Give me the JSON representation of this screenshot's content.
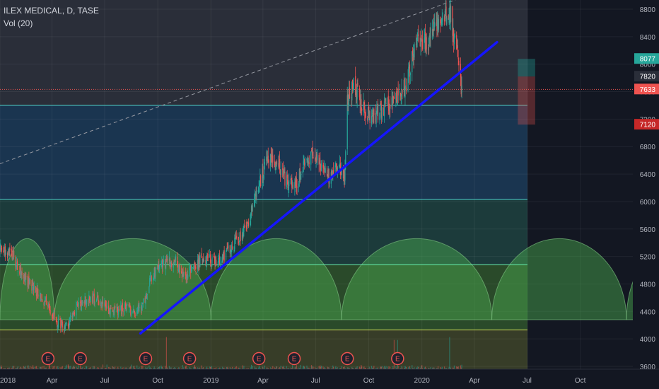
{
  "header": {
    "symbol_line": "ILEX MEDICAL, D, TASE",
    "volume_label": "Vol (20)"
  },
  "colors": {
    "background": "#131722",
    "up_candle": "#26a69a",
    "down_candle": "#ef5350",
    "trendline": "#1515ff",
    "cycle_fill": "#4caf50",
    "channel_line": "#4dd0c8",
    "earnings_marker": "#ef5350"
  },
  "chart_data": {
    "type": "candlestick",
    "symbol": "ILEX MEDICAL",
    "interval": "D",
    "exchange": "TASE",
    "y_axis": {
      "range": [
        3560,
        8950
      ],
      "ticks": [
        "8800",
        "8400",
        "8000",
        "7600",
        "7200",
        "6800",
        "6400",
        "6000",
        "5600",
        "5200",
        "4800",
        "4400",
        "4000",
        "3600"
      ]
    },
    "x_axis": {
      "range": [
        "2018-01-01",
        "2020-12-31"
      ],
      "labels": [
        {
          "date": "2018-01-01",
          "label": "2018"
        },
        {
          "date": "2018-04-01",
          "label": "Apr"
        },
        {
          "date": "2018-07-01",
          "label": "Jul"
        },
        {
          "date": "2018-10-01",
          "label": "Oct"
        },
        {
          "date": "2019-01-01",
          "label": "2019"
        },
        {
          "date": "2019-04-01",
          "label": "Apr"
        },
        {
          "date": "2019-07-01",
          "label": "Jul"
        },
        {
          "date": "2019-10-01",
          "label": "Oct"
        },
        {
          "date": "2020-01-01",
          "label": "2020"
        },
        {
          "date": "2020-04-01",
          "label": "Apr"
        },
        {
          "date": "2020-07-01",
          "label": "Jul"
        },
        {
          "date": "2020-10-01",
          "label": "Oct"
        }
      ]
    },
    "price_path": [
      [
        "2018-01-01",
        5300
      ],
      [
        "2018-01-20",
        5250
      ],
      [
        "2018-02-10",
        4900
      ],
      [
        "2018-03-01",
        4750
      ],
      [
        "2018-03-20",
        4550
      ],
      [
        "2018-04-10",
        4250
      ],
      [
        "2018-04-25",
        4180
      ],
      [
        "2018-05-15",
        4450
      ],
      [
        "2018-06-05",
        4620
      ],
      [
        "2018-06-25",
        4500
      ],
      [
        "2018-07-15",
        4400
      ],
      [
        "2018-08-05",
        4450
      ],
      [
        "2018-08-25",
        4380
      ],
      [
        "2018-09-05",
        4500
      ],
      [
        "2018-09-20",
        4900
      ],
      [
        "2018-10-10",
        5100
      ],
      [
        "2018-10-30",
        5150
      ],
      [
        "2018-11-15",
        4900
      ],
      [
        "2018-12-01",
        5050
      ],
      [
        "2018-12-20",
        5200
      ],
      [
        "2019-01-10",
        5100
      ],
      [
        "2019-02-01",
        5300
      ],
      [
        "2019-02-25",
        5500
      ],
      [
        "2019-03-15",
        5900
      ],
      [
        "2019-03-30",
        6400
      ],
      [
        "2019-04-10",
        6600
      ],
      [
        "2019-04-25",
        6550
      ],
      [
        "2019-05-10",
        6300
      ],
      [
        "2019-05-25",
        6200
      ],
      [
        "2019-06-10",
        6500
      ],
      [
        "2019-06-25",
        6650
      ],
      [
        "2019-07-10",
        6500
      ],
      [
        "2019-07-25",
        6350
      ],
      [
        "2019-08-10",
        6500
      ],
      [
        "2019-08-20",
        6300
      ],
      [
        "2019-08-25",
        7500
      ],
      [
        "2019-09-05",
        7700
      ],
      [
        "2019-09-20",
        7400
      ],
      [
        "2019-10-05",
        7200
      ],
      [
        "2019-10-25",
        7350
      ],
      [
        "2019-11-10",
        7450
      ],
      [
        "2019-11-25",
        7550
      ],
      [
        "2019-12-05",
        7700
      ],
      [
        "2019-12-15",
        8100
      ],
      [
        "2019-12-25",
        8350
      ],
      [
        "2020-01-10",
        8300
      ],
      [
        "2020-01-25",
        8600
      ],
      [
        "2020-02-10",
        8750
      ],
      [
        "2020-02-20",
        8700
      ],
      [
        "2020-03-01",
        8200
      ],
      [
        "2020-03-10",
        7633
      ]
    ],
    "last_price": 7633,
    "trendline": {
      "from": {
        "date": "2018-09-01",
        "price": 4080
      },
      "to": {
        "date": "2020-05-10",
        "price": 8320
      }
    },
    "dashed_trendline": {
      "from": {
        "date": "2018-01-01",
        "price": 6550
      },
      "to": {
        "date": "2020-03-20",
        "price": 9000
      }
    },
    "horizontal_levels": [
      {
        "price": 7400,
        "type": "line"
      },
      {
        "price": 6030,
        "type": "line"
      },
      {
        "price": 5080,
        "type": "line"
      },
      {
        "price": 4130,
        "type": "line"
      },
      {
        "price": 7633,
        "type": "dotted"
      }
    ],
    "zones": [
      {
        "from_price": 7400,
        "to_price": 8950,
        "color": "#2a2e39"
      },
      {
        "from_price": 6030,
        "to_price": 7400,
        "color": "#1a3550"
      },
      {
        "from_price": 5080,
        "to_price": 6030,
        "color": "#1c3b3b"
      },
      {
        "from_price": 4130,
        "to_price": 5080,
        "color": "#2a4a2a"
      },
      {
        "from_price": 3560,
        "to_price": 4130,
        "color": "#373d28"
      }
    ],
    "cycles": [
      {
        "start": "2018-01-01",
        "end": "2018-04-05"
      },
      {
        "start": "2018-04-05",
        "end": "2019-01-01"
      },
      {
        "start": "2019-01-01",
        "end": "2019-08-15"
      },
      {
        "start": "2019-08-15",
        "end": "2020-05-01"
      },
      {
        "start": "2020-05-01",
        "end": "2020-12-20"
      },
      {
        "start": "2020-12-20",
        "end": "2021-06-30"
      }
    ],
    "cycle_top_price": 5460,
    "cycle_base_price": 4280,
    "earnings_dates": [
      "2018-03-25",
      "2018-05-20",
      "2018-09-10",
      "2018-11-25",
      "2019-03-25",
      "2019-05-25",
      "2019-08-25",
      "2019-11-20"
    ],
    "position": {
      "entry": 7820,
      "target": 8077,
      "stop": 7120,
      "from": "2020-06-15",
      "to": "2020-07-15"
    },
    "price_labels": [
      {
        "text": "8077",
        "price": 8077,
        "bg": "#26a69a"
      },
      {
        "text": "7820",
        "price": 7820,
        "bg": "#2a2e39"
      },
      {
        "text": "7633",
        "price": 7633,
        "bg": "#ef5350"
      },
      {
        "text": "7120",
        "price": 7120,
        "bg": "#c62828"
      }
    ]
  }
}
